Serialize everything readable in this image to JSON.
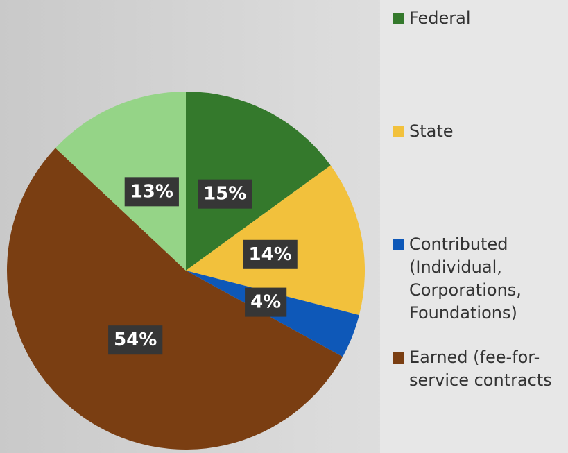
{
  "chart_data": {
    "type": "pie",
    "categories": [
      "Federal",
      "State",
      "Contributed (Individual, Corporations, Foundations)",
      "Earned (fee-for-service contracts",
      null
    ],
    "values": [
      15,
      14,
      4,
      54,
      13
    ],
    "value_labels": [
      "15%",
      "14%",
      "4%",
      "54%",
      "13%"
    ],
    "colors": [
      "#34792c",
      "#f2c13c",
      "#0e58b8",
      "#7a3e12",
      "#95d487"
    ],
    "legend": "right"
  }
}
